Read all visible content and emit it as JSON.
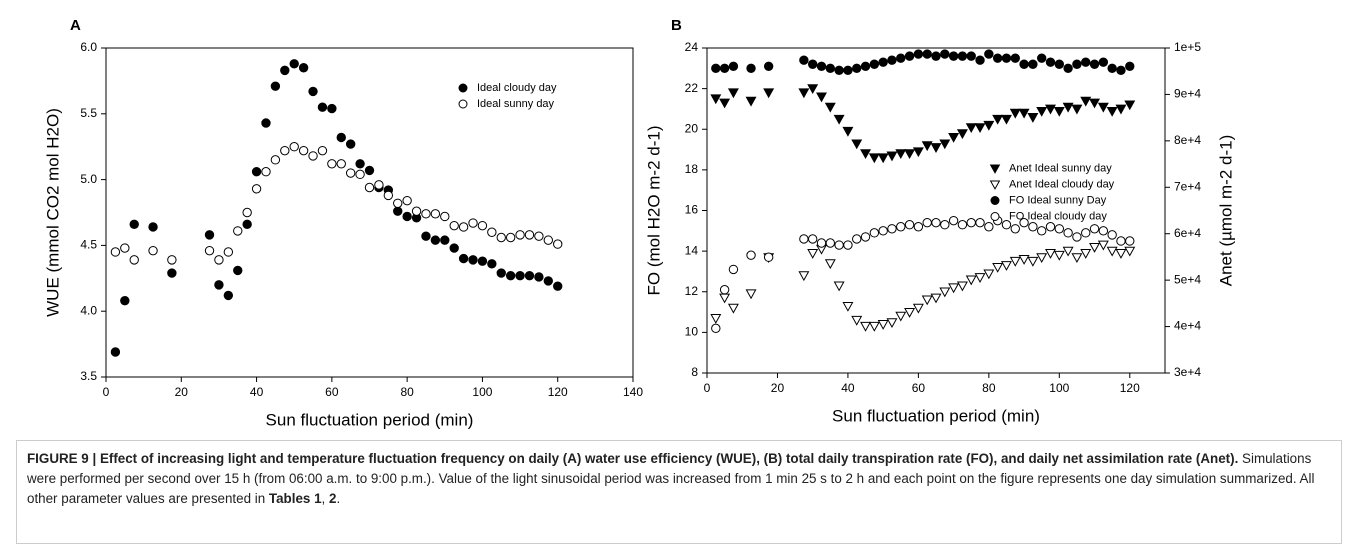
{
  "chart_data": [
    {
      "type": "scatter",
      "panel": "A",
      "xlabel": "Sun fluctuation period (min)",
      "ylabel": "WUE (mmol CO2 mol H2O)",
      "xlim": [
        0,
        140
      ],
      "xticks": [
        0,
        20,
        40,
        60,
        80,
        100,
        120,
        140
      ],
      "ylim": [
        3.5,
        6.0
      ],
      "yticks": [
        {
          "value": 3.5,
          "label": "3.5"
        },
        {
          "value": 4.0,
          "label": "4.0"
        },
        {
          "value": 4.5,
          "label": "4.5"
        },
        {
          "value": 5.0,
          "label": "5.0"
        },
        {
          "value": 5.5,
          "label": "5.5"
        },
        {
          "value": 6.0,
          "label": "6.0"
        }
      ],
      "legend": "upper right",
      "x": [
        2.5,
        5,
        7.5,
        12.5,
        17.5,
        27.5,
        30,
        32.5,
        35,
        37.5,
        40,
        42.5,
        45,
        47.5,
        50,
        52.5,
        55,
        57.5,
        60,
        62.5,
        65,
        67.5,
        70,
        72.5,
        75,
        77.5,
        80,
        82.5,
        85,
        87.5,
        90,
        92.5,
        95,
        97.5,
        100,
        102.5,
        105,
        107.5,
        110,
        112.5,
        115,
        117.5,
        120
      ],
      "series": [
        {
          "name": "Ideal cloudy day",
          "color": "#000000",
          "marker": "circle",
          "filled": true,
          "values": [
            3.69,
            4.08,
            4.66,
            4.64,
            4.29,
            4.58,
            4.2,
            4.12,
            4.31,
            4.66,
            5.06,
            5.43,
            5.71,
            5.83,
            5.88,
            5.85,
            5.67,
            5.55,
            5.54,
            5.32,
            5.27,
            5.12,
            5.07,
            4.94,
            4.92,
            4.76,
            4.72,
            4.71,
            4.57,
            4.54,
            4.54,
            4.48,
            4.4,
            4.39,
            4.38,
            4.36,
            4.29,
            4.27,
            4.27,
            4.27,
            4.26,
            4.23,
            4.19
          ]
        },
        {
          "name": "Ideal sunny day",
          "color": "#000000",
          "marker": "circle",
          "filled": false,
          "values": [
            4.45,
            4.48,
            4.39,
            4.46,
            4.39,
            4.46,
            4.39,
            4.45,
            4.61,
            4.75,
            4.93,
            5.06,
            5.15,
            5.22,
            5.25,
            5.22,
            5.18,
            5.22,
            5.12,
            5.12,
            5.05,
            5.04,
            4.94,
            4.96,
            4.88,
            4.82,
            4.84,
            4.76,
            4.74,
            4.74,
            4.72,
            4.65,
            4.64,
            4.67,
            4.65,
            4.6,
            4.56,
            4.56,
            4.58,
            4.58,
            4.57,
            4.54,
            4.51
          ]
        }
      ]
    },
    {
      "type": "scatter",
      "panel": "B",
      "xlabel": "Sun fluctuation period (min)",
      "ylabel": "FO (mol H2O m-2 d-1)",
      "y2label": "Anet (µmol m-2 d-1)",
      "xlim": [
        0,
        130
      ],
      "xticks": [
        0,
        20,
        40,
        60,
        80,
        100,
        120
      ],
      "ylim": [
        8,
        24
      ],
      "yticks": [
        8,
        10,
        12,
        14,
        16,
        18,
        20,
        22,
        24
      ],
      "y2lim": [
        30000,
        100000
      ],
      "y2ticks": [
        {
          "value": 30000,
          "label": "3e+4"
        },
        {
          "value": 40000,
          "label": "4e+4"
        },
        {
          "value": 50000,
          "label": "5e+4"
        },
        {
          "value": 60000,
          "label": "6e+4"
        },
        {
          "value": 70000,
          "label": "7e+4"
        },
        {
          "value": 80000,
          "label": "8e+4"
        },
        {
          "value": 90000,
          "label": "9e+4"
        },
        {
          "value": 100000,
          "label": "1e+5"
        }
      ],
      "legend": "center right",
      "x": [
        2.5,
        5,
        7.5,
        12.5,
        17.5,
        27.5,
        30,
        32.5,
        35,
        37.5,
        40,
        42.5,
        45,
        47.5,
        50,
        52.5,
        55,
        57.5,
        60,
        62.5,
        65,
        67.5,
        70,
        72.5,
        75,
        77.5,
        80,
        82.5,
        85,
        87.5,
        90,
        92.5,
        95,
        97.5,
        100,
        102.5,
        105,
        107.5,
        110,
        112.5,
        115,
        117.5,
        120
      ],
      "series": [
        {
          "name": "Anet Ideal sunny day",
          "color": "#000000",
          "marker": "triangle",
          "filled": true,
          "axis": "y2",
          "values": [
            89100,
            88200,
            90400,
            88600,
            90400,
            90400,
            91300,
            89500,
            87300,
            84700,
            82100,
            79400,
            77300,
            76400,
            76400,
            76800,
            77300,
            77300,
            77700,
            79000,
            78600,
            79400,
            80800,
            81600,
            82900,
            82900,
            83400,
            84700,
            84700,
            86000,
            86000,
            85100,
            86400,
            86900,
            86400,
            87300,
            86900,
            88600,
            88200,
            87300,
            86400,
            86900,
            87800
          ]
        },
        {
          "name": "Anet Ideal cloudy day",
          "color": "#000000",
          "marker": "triangle",
          "filled": false,
          "axis": "y2",
          "values": [
            41800,
            46200,
            44000,
            47100,
            54900,
            51000,
            55800,
            56700,
            53600,
            48800,
            44400,
            41400,
            40100,
            40100,
            40500,
            40900,
            42300,
            43100,
            44000,
            45800,
            46200,
            47500,
            48400,
            48800,
            50100,
            50600,
            51400,
            52800,
            53200,
            54100,
            54500,
            54100,
            54900,
            55800,
            55400,
            56300,
            54900,
            55800,
            57100,
            57600,
            56300,
            55800,
            56300
          ]
        },
        {
          "name": "FO Ideal sunny Day",
          "color": "#000000",
          "marker": "circle",
          "filled": true,
          "values": [
            23.0,
            23.0,
            23.1,
            23.0,
            23.1,
            23.4,
            23.2,
            23.1,
            23.0,
            22.9,
            22.9,
            23.0,
            23.1,
            23.2,
            23.3,
            23.4,
            23.5,
            23.6,
            23.7,
            23.7,
            23.6,
            23.7,
            23.6,
            23.6,
            23.6,
            23.4,
            23.7,
            23.5,
            23.5,
            23.5,
            23.2,
            23.2,
            23.5,
            23.3,
            23.2,
            23.0,
            23.2,
            23.3,
            23.2,
            23.3,
            23.0,
            22.9,
            23.1
          ]
        },
        {
          "name": "FO Ideal cloudy day",
          "color": "#000000",
          "marker": "circle",
          "filled": false,
          "values": [
            10.2,
            12.1,
            13.1,
            13.8,
            13.7,
            14.6,
            14.6,
            14.4,
            14.4,
            14.3,
            14.3,
            14.6,
            14.7,
            14.9,
            15.0,
            15.1,
            15.2,
            15.3,
            15.2,
            15.4,
            15.4,
            15.3,
            15.5,
            15.3,
            15.4,
            15.4,
            15.2,
            15.5,
            15.3,
            15.1,
            15.4,
            15.2,
            15.0,
            15.2,
            15.1,
            14.9,
            14.7,
            14.9,
            15.1,
            15.0,
            14.8,
            14.5,
            14.5
          ]
        }
      ]
    }
  ],
  "caption": [
    {
      "text": "FIGURE 9 | Effect of increasing light and temperature fluctuation frequency on daily (A) water use efficiency (WUE), (B) total daily transpiration rate (FO), and daily net assimilation rate (Anet).",
      "bold": true
    },
    {
      "text": " Simulations were performed per second over 15 h (from 06:00 a.m. to 9:00 p.m.). Value of the light sinusoidal period was increased from 1 min 25 s to 2 h and each point on the figure represents one day simulation summarized. All other parameter values are presented in ",
      "bold": false
    },
    {
      "text": "Tables 1",
      "bold": true
    },
    {
      "text": ", ",
      "bold": false
    },
    {
      "text": "2",
      "bold": true
    },
    {
      "text": ".",
      "bold": false
    }
  ]
}
